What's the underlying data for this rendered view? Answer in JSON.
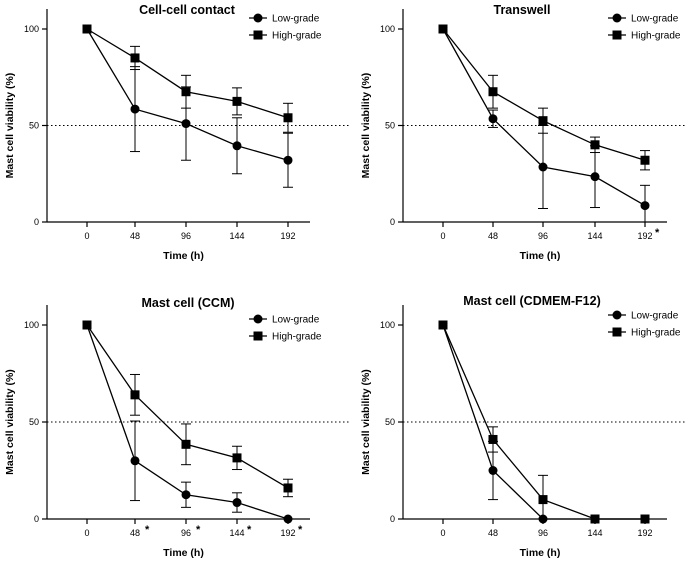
{
  "chart_data": [
    {
      "type": "line",
      "title": "Cell-cell contact",
      "xlabel": "Time (h)",
      "ylabel": "Mast cell viability (%)",
      "categories": [
        "0",
        "48",
        "96",
        "144",
        "192"
      ],
      "ylim": [
        0,
        100
      ],
      "yticks": [
        "0",
        "50",
        "100"
      ],
      "reference_line": 50,
      "legend_position": "top-right",
      "series": [
        {
          "name": "Low-grade",
          "marker": "circle",
          "values": [
            100,
            58.5,
            51,
            39.5,
            32
          ],
          "errors": [
            0,
            22,
            19,
            14.5,
            14
          ]
        },
        {
          "name": "High-grade",
          "marker": "square",
          "values": [
            100,
            85,
            67.5,
            62.5,
            54
          ],
          "errors": [
            0,
            6,
            8.5,
            7,
            7.5
          ]
        }
      ],
      "significance": []
    },
    {
      "type": "line",
      "title": "Transwell",
      "xlabel": "Time (h)",
      "ylabel": "Mast cell viability (%)",
      "categories": [
        "0",
        "48",
        "96",
        "144",
        "192"
      ],
      "ylim": [
        0,
        100
      ],
      "yticks": [
        "0",
        "50",
        "100"
      ],
      "reference_line": 50,
      "legend_position": "top-right",
      "series": [
        {
          "name": "Low-grade",
          "marker": "circle",
          "values": [
            100,
            53.5,
            28.5,
            23.5,
            8.5
          ],
          "errors": [
            0,
            4.5,
            21.5,
            16,
            10.5
          ]
        },
        {
          "name": "High-grade",
          "marker": "square",
          "values": [
            100,
            67.5,
            52.5,
            40,
            32
          ],
          "errors": [
            0,
            8.5,
            6.5,
            4,
            5
          ]
        }
      ],
      "significance": [
        {
          "category": "192",
          "symbol": "*"
        }
      ]
    },
    {
      "type": "line",
      "title": "Mast cell (CCM)",
      "xlabel": "Time (h)",
      "ylabel": "Mast cell viability (%)",
      "categories": [
        "0",
        "48",
        "96",
        "144",
        "192"
      ],
      "ylim": [
        0,
        100
      ],
      "yticks": [
        "0",
        "50",
        "100"
      ],
      "reference_line": 50,
      "legend_position": "top-right",
      "series": [
        {
          "name": "Low-grade",
          "marker": "circle",
          "values": [
            100,
            30,
            12.5,
            8.5,
            0
          ],
          "errors": [
            0,
            20.5,
            6.5,
            5,
            0
          ]
        },
        {
          "name": "High-grade",
          "marker": "square",
          "values": [
            100,
            64,
            38.5,
            31.5,
            16
          ],
          "errors": [
            0,
            10.5,
            10.5,
            6,
            4.5
          ]
        }
      ],
      "significance": [
        {
          "category": "48",
          "symbol": "*"
        },
        {
          "category": "96",
          "symbol": "*"
        },
        {
          "category": "144",
          "symbol": "*"
        },
        {
          "category": "192",
          "symbol": "*"
        }
      ]
    },
    {
      "type": "line",
      "title": "Mast cell (CDMEM-F12)",
      "xlabel": "Time (h)",
      "ylabel": "Mast cell viability (%)",
      "categories": [
        "0",
        "48",
        "96",
        "144",
        "192"
      ],
      "ylim": [
        0,
        100
      ],
      "yticks": [
        "0",
        "50",
        "100"
      ],
      "reference_line": 50,
      "legend_position": "top-right",
      "series": [
        {
          "name": "Low-grade",
          "marker": "circle",
          "values": [
            100,
            25,
            0,
            0,
            0
          ],
          "errors": [
            0,
            15,
            0,
            0,
            0
          ]
        },
        {
          "name": "High-grade",
          "marker": "square",
          "values": [
            100,
            41,
            10,
            0,
            0
          ],
          "errors": [
            0,
            6.5,
            12.5,
            0,
            0
          ]
        }
      ],
      "significance": []
    }
  ]
}
